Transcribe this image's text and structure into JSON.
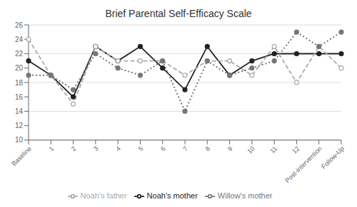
{
  "chart_data": {
    "type": "line",
    "title": "Brief Parental Self-Efficacy Scale",
    "categories": [
      "Baseline",
      "1",
      "2",
      "3",
      "4",
      "5",
      "6",
      "7",
      "8",
      "9",
      "10",
      "11",
      "12",
      "Post-Intervention",
      "Follow-Up"
    ],
    "series": [
      {
        "name": "Noah's mother",
        "color": "#222222",
        "line_style": "solid",
        "marker": "circle",
        "values": [
          21,
          19,
          16,
          23,
          21,
          23,
          20,
          17,
          23,
          19,
          21,
          22,
          22,
          22,
          22
        ]
      },
      {
        "name": "Noah's father",
        "color": "#aaaaaa",
        "line_style": "dashed",
        "marker": "open_circle",
        "values": [
          24,
          19,
          15,
          23,
          21,
          21,
          21,
          19,
          21,
          21,
          19,
          23,
          18,
          23,
          20
        ]
      },
      {
        "name": "Willow's mother",
        "color": "#777777",
        "line_style": "dotted",
        "marker": "circle",
        "values": [
          19,
          19,
          17,
          22,
          20,
          19,
          21,
          14,
          21,
          19,
          20,
          21,
          25,
          23,
          25
        ]
      }
    ],
    "ylim": [
      10,
      26
    ],
    "yticks": [
      10,
      12,
      14,
      16,
      18,
      20,
      22,
      24,
      26
    ],
    "grid": true,
    "legend": "bottom"
  }
}
